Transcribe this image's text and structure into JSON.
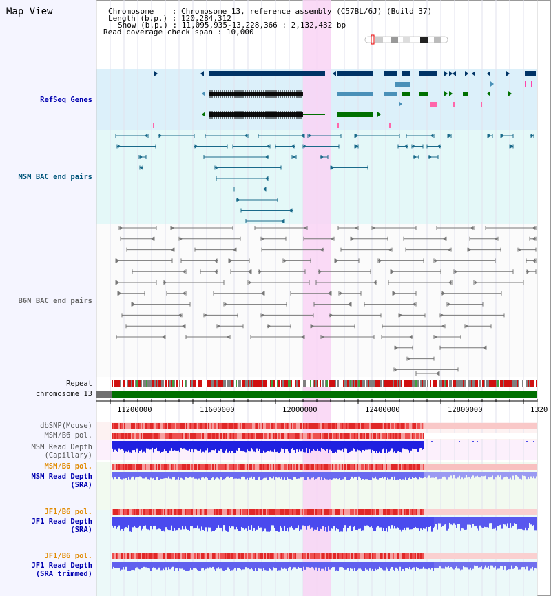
{
  "title": "Map View",
  "info": {
    "chromosome_label": "Chromosome",
    "chromosome_value": "Chromosome 13, reference assembly (C57BL/6J) (Build 37)",
    "length_label": "Length (b.p.)",
    "length_value": "120,284,312",
    "show_label": "Show (b.p.)",
    "show_value": "11,095,935-13,228,366 : 2,132,432 bp",
    "coverage_label": "Read coverage check span",
    "coverage_value": "10,000"
  },
  "tracks": {
    "refseq": "RefSeq Genes",
    "msm_bac": "MSM BAC end pairs",
    "b6n_bac": "B6N BAC end pairs",
    "repeat": "Repeat",
    "chromosome": "chromosome 13",
    "dbsnp": "dbSNP(Mouse)",
    "msm_b6_pol": "MSM/B6 pol.",
    "msm_depth_cap_1": "MSM Read Depth",
    "msm_depth_cap_2": "(Capillary)",
    "msm_b6_pol_sra": "MSM/B6 pol.",
    "msm_depth_sra_1": "MSM Read Depth",
    "msm_depth_sra_2": "(SRA)",
    "jf1_b6_pol_1": "JF1/B6 pol.",
    "jf1_depth_sra_1": "JF1 Read Depth",
    "jf1_depth_sra_2": "(SRA)",
    "jf1_b6_pol_2": "JF1/B6 pol.",
    "jf1_depth_trim_1": "JF1 Read Depth",
    "jf1_depth_trim_2": "(SRA trimmed)"
  },
  "axis": {
    "ticks": [
      "11200000",
      "11600000",
      "12000000",
      "12400000",
      "12800000",
      "1320"
    ]
  },
  "colors": {
    "highlight": "#f9d4f4",
    "refseq_bg": "#dcf0fa",
    "bac_bg": "#e4f8f8",
    "chromosome_fill": "#007000",
    "gene_dark": "#003366",
    "gene_mid": "#4a90b8",
    "gene_green": "#007000",
    "bac_teal": "#1a6a8a",
    "bac_gray": "#777777",
    "depth_blue": "#2020e0",
    "depth_light": "#7a7aee",
    "snp_red": "#e03030"
  }
}
